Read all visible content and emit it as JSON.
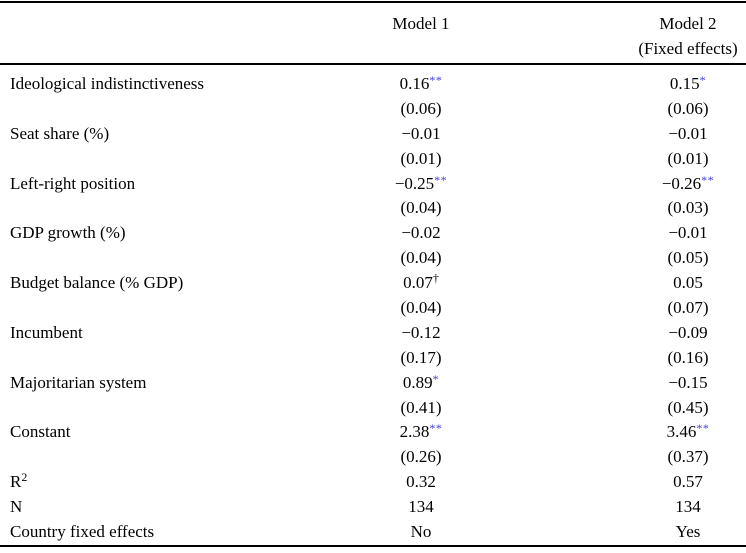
{
  "colors": {
    "star_accent": "#3c3ccf",
    "text": "#000000",
    "background": "#ffffff"
  },
  "header": {
    "model1": "Model 1",
    "model2_line1": "Model 2",
    "model2_line2": "(Fixed effects)"
  },
  "rows": [
    {
      "label": "Ideological indistinctiveness",
      "m1": "0.16",
      "m1_sup": "**",
      "m2": "0.15",
      "m2_sup": "*"
    },
    {
      "label": "",
      "m1": "(0.06)",
      "m2": "(0.06)"
    },
    {
      "label": "Seat share (%)",
      "m1": "−0.01",
      "m2": "−0.01"
    },
    {
      "label": "",
      "m1": "(0.01)",
      "m2": "(0.01)"
    },
    {
      "label": "Left-right position",
      "m1": "−0.25",
      "m1_sup": "**",
      "m2": "−0.26",
      "m2_sup": "**"
    },
    {
      "label": "",
      "m1": "(0.04)",
      "m2": "(0.03)"
    },
    {
      "label": "GDP growth (%)",
      "m1": "−0.02",
      "m2": "−0.01"
    },
    {
      "label": "",
      "m1": "(0.04)",
      "m2": "(0.05)"
    },
    {
      "label": "Budget balance (% GDP)",
      "m1": "0.07",
      "m1_sup": "†",
      "m2": "0.05"
    },
    {
      "label": "",
      "m1": "(0.04)",
      "m2": "(0.07)"
    },
    {
      "label": "Incumbent",
      "m1": "−0.12",
      "m2": "−0.09"
    },
    {
      "label": "",
      "m1": "(0.17)",
      "m2": "(0.16)"
    },
    {
      "label": "Majoritarian system",
      "m1": "0.89",
      "m1_sup": "*",
      "m2": "−0.15"
    },
    {
      "label": "",
      "m1": "(0.41)",
      "m2": "(0.45)"
    },
    {
      "label": "Constant",
      "m1": "2.38",
      "m1_sup": "**",
      "m2": "3.46",
      "m2_sup": "**"
    },
    {
      "label": "",
      "m1": "(0.26)",
      "m2": "(0.37)"
    },
    {
      "label": "R",
      "label_sup": "2",
      "m1": "0.32",
      "m2": "0.57"
    },
    {
      "label": "N",
      "m1": "134",
      "m2": "134"
    },
    {
      "label": "Country fixed effects",
      "m1": "No",
      "m2": "Yes"
    }
  ]
}
